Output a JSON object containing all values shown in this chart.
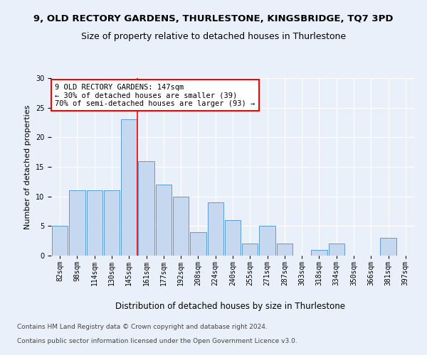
{
  "title1": "9, OLD RECTORY GARDENS, THURLESTONE, KINGSBRIDGE, TQ7 3PD",
  "title2": "Size of property relative to detached houses in Thurlestone",
  "xlabel": "Distribution of detached houses by size in Thurlestone",
  "ylabel": "Number of detached properties",
  "categories": [
    "82sqm",
    "98sqm",
    "114sqm",
    "130sqm",
    "145sqm",
    "161sqm",
    "177sqm",
    "192sqm",
    "208sqm",
    "224sqm",
    "240sqm",
    "255sqm",
    "271sqm",
    "287sqm",
    "303sqm",
    "318sqm",
    "334sqm",
    "350sqm",
    "366sqm",
    "381sqm",
    "397sqm"
  ],
  "values": [
    5,
    11,
    11,
    11,
    23,
    16,
    12,
    10,
    4,
    9,
    6,
    2,
    5,
    2,
    0,
    1,
    2,
    0,
    0,
    3,
    0
  ],
  "bar_color": "#c5d8f0",
  "bar_edge_color": "#5b9bd5",
  "annotation_text": "9 OLD RECTORY GARDENS: 147sqm\n← 30% of detached houses are smaller (39)\n70% of semi-detached houses are larger (93) →",
  "annotation_box_color": "white",
  "annotation_box_edge": "red",
  "ylim": [
    0,
    30
  ],
  "yticks": [
    0,
    5,
    10,
    15,
    20,
    25,
    30
  ],
  "footer1": "Contains HM Land Registry data © Crown copyright and database right 2024.",
  "footer2": "Contains public sector information licensed under the Open Government Licence v3.0.",
  "bg_color": "#eaf0f9",
  "plot_bg_color": "#eaf0f9",
  "title1_fontsize": 9.5,
  "title2_fontsize": 9,
  "xlabel_fontsize": 8.5,
  "ylabel_fontsize": 8,
  "tick_fontsize": 7,
  "footer_fontsize": 6.5
}
